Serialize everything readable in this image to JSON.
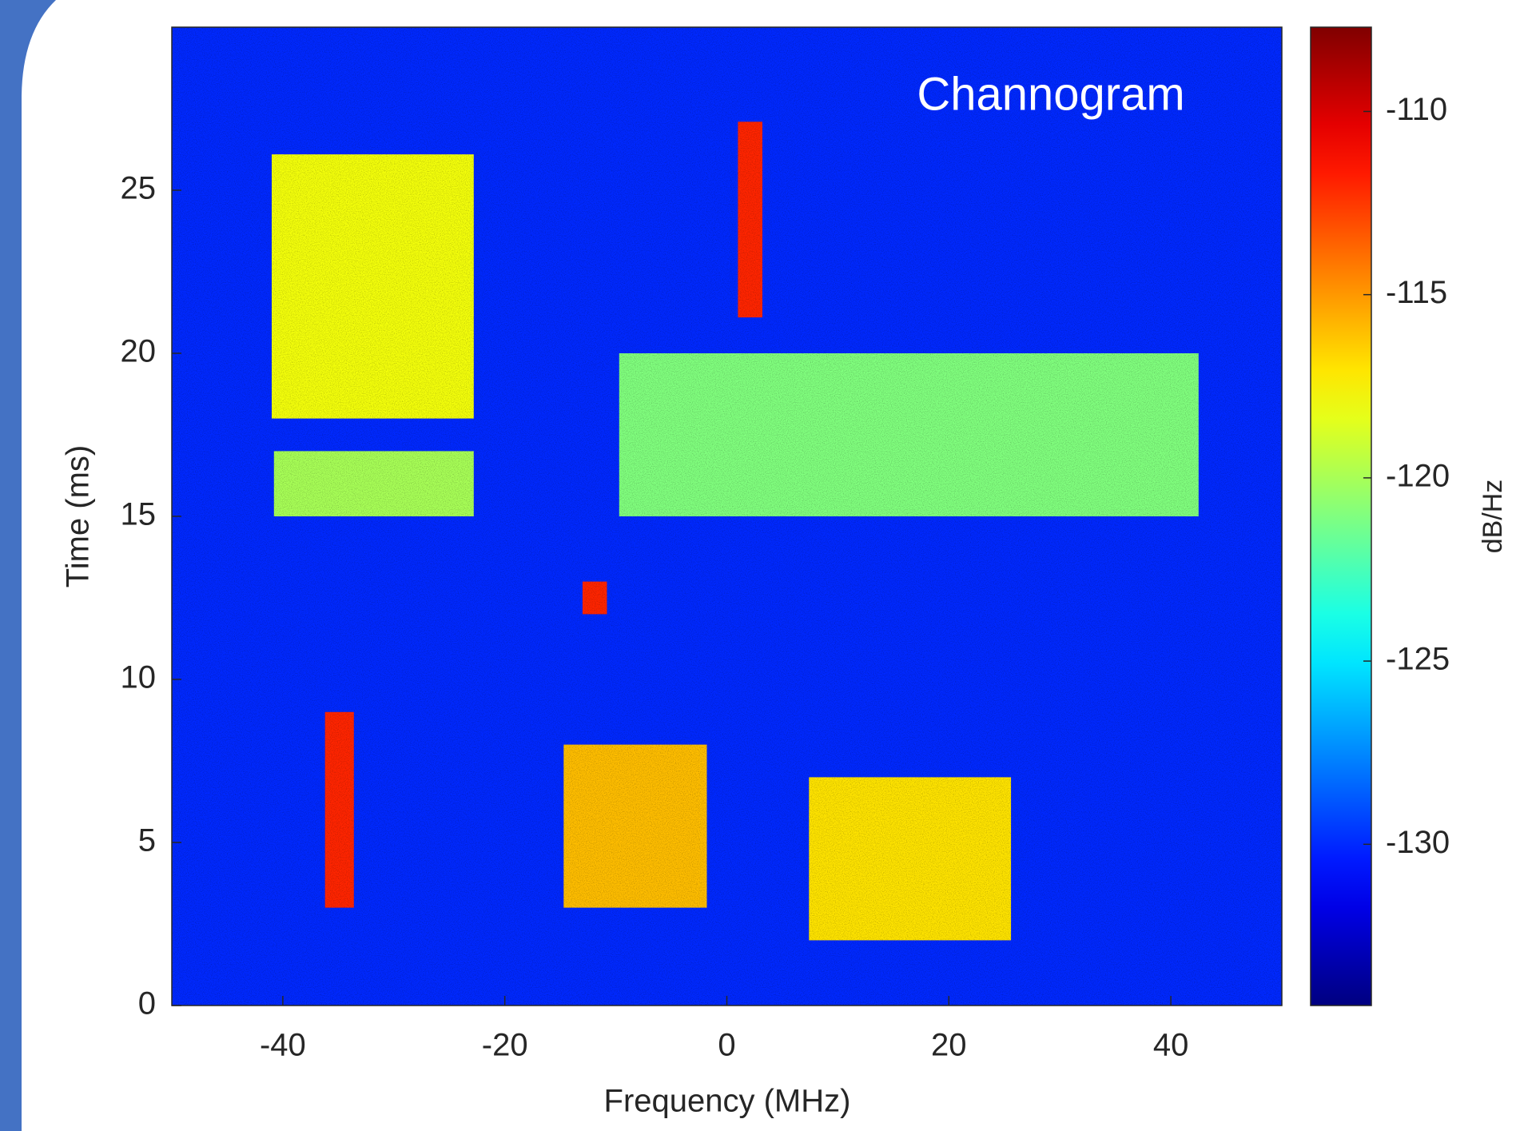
{
  "chart_data": {
    "type": "heatmap",
    "annotation": "Channogram",
    "x_label": "Frequency (MHz)",
    "y_label": "Time (ms)",
    "colorbar_label": "dB/Hz",
    "xlim": [
      -50,
      50
    ],
    "xticks": [
      -40,
      -20,
      0,
      20,
      40
    ],
    "ylim": [
      0,
      30
    ],
    "yticks": [
      0,
      5,
      10,
      15,
      20,
      25
    ],
    "clim": [
      -134.4,
      -107.7
    ],
    "cticks": [
      -130,
      -125,
      -120,
      -115,
      -110
    ],
    "colormap": "jet",
    "background": -130,
    "signals": [
      {
        "x": [
          -41,
          -22.8
        ],
        "y": [
          18,
          26.1
        ],
        "value": -118
      },
      {
        "x": [
          -40.8,
          -22.8
        ],
        "y": [
          15,
          17
        ],
        "value": -120
      },
      {
        "x": [
          1,
          3.2
        ],
        "y": [
          21.1,
          27.1
        ],
        "value": -112
      },
      {
        "x": [
          -9.7,
          42.5
        ],
        "y": [
          15,
          20
        ],
        "value": -121
      },
      {
        "x": [
          -13,
          -10.8
        ],
        "y": [
          12,
          13
        ],
        "value": -112
      },
      {
        "x": [
          -36.2,
          -33.6
        ],
        "y": [
          3,
          9
        ],
        "value": -112
      },
      {
        "x": [
          -14.7,
          -1.8
        ],
        "y": [
          3,
          8
        ],
        "value": -116
      },
      {
        "x": [
          7.4,
          25.6
        ],
        "y": [
          2,
          7
        ],
        "value": -117
      }
    ]
  }
}
